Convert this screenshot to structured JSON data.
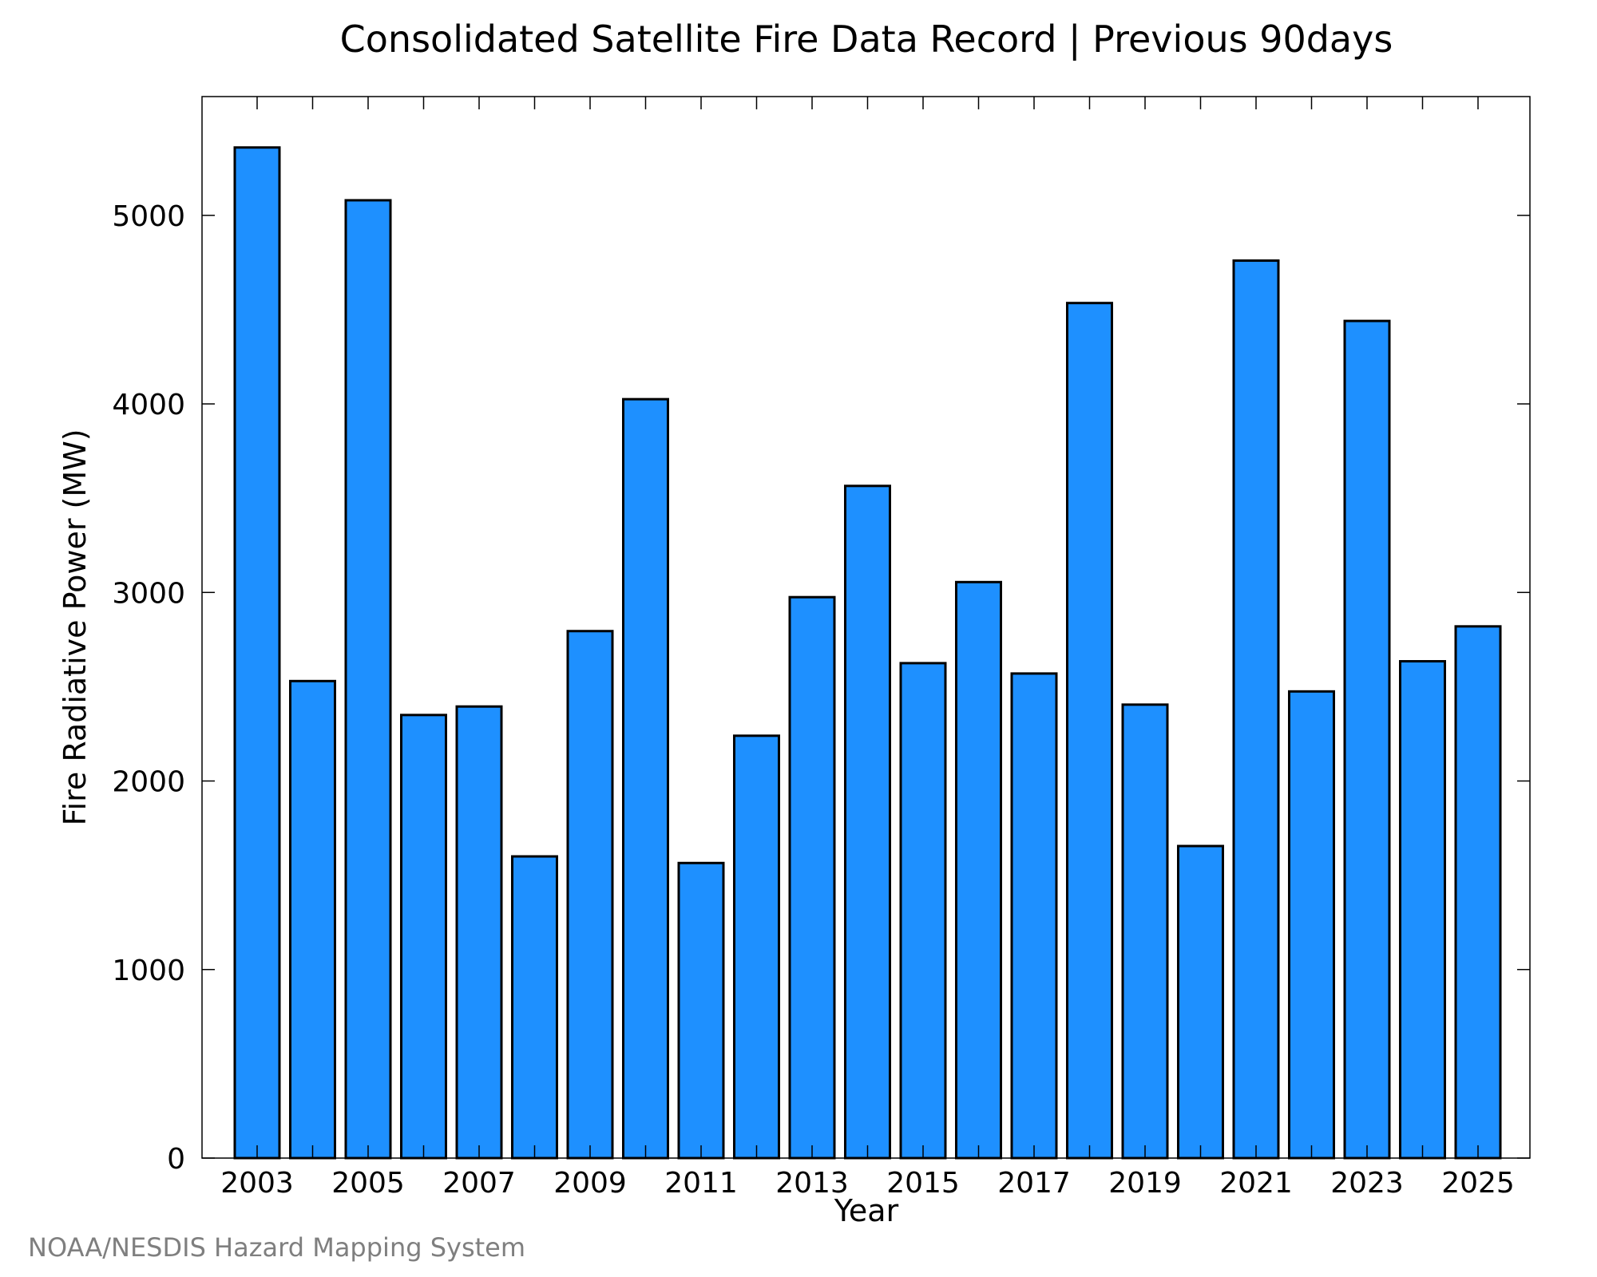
{
  "chart_data": {
    "type": "bar",
    "title": "Consolidated Satellite Fire Data Record | Previous 90days",
    "xlabel": "Year",
    "ylabel": "Fire Radiative Power (MW)",
    "categories": [
      "2003",
      "2004",
      "2005",
      "2006",
      "2007",
      "2008",
      "2009",
      "2010",
      "2011",
      "2012",
      "2013",
      "2014",
      "2015",
      "2016",
      "2017",
      "2018",
      "2019",
      "2020",
      "2021",
      "2022",
      "2023",
      "2024",
      "2025"
    ],
    "values": [
      5360,
      2530,
      5080,
      2350,
      2395,
      1600,
      2795,
      4025,
      1565,
      2240,
      2975,
      3565,
      2625,
      3055,
      2570,
      4535,
      2405,
      1655,
      4760,
      2475,
      4440,
      2635,
      2820
    ],
    "x_ticks": [
      "2003",
      "2005",
      "2007",
      "2009",
      "2011",
      "2013",
      "2015",
      "2017",
      "2019",
      "2021",
      "2023",
      "2025"
    ],
    "y_ticks": [
      "0",
      "1000",
      "2000",
      "3000",
      "4000",
      "5000"
    ],
    "ylim": [
      0,
      5630
    ],
    "bar_color": "#1e90ff",
    "edge_color": "#000000",
    "grid": false,
    "legend": "none"
  },
  "credit": "NOAA/NESDIS Hazard Mapping System"
}
